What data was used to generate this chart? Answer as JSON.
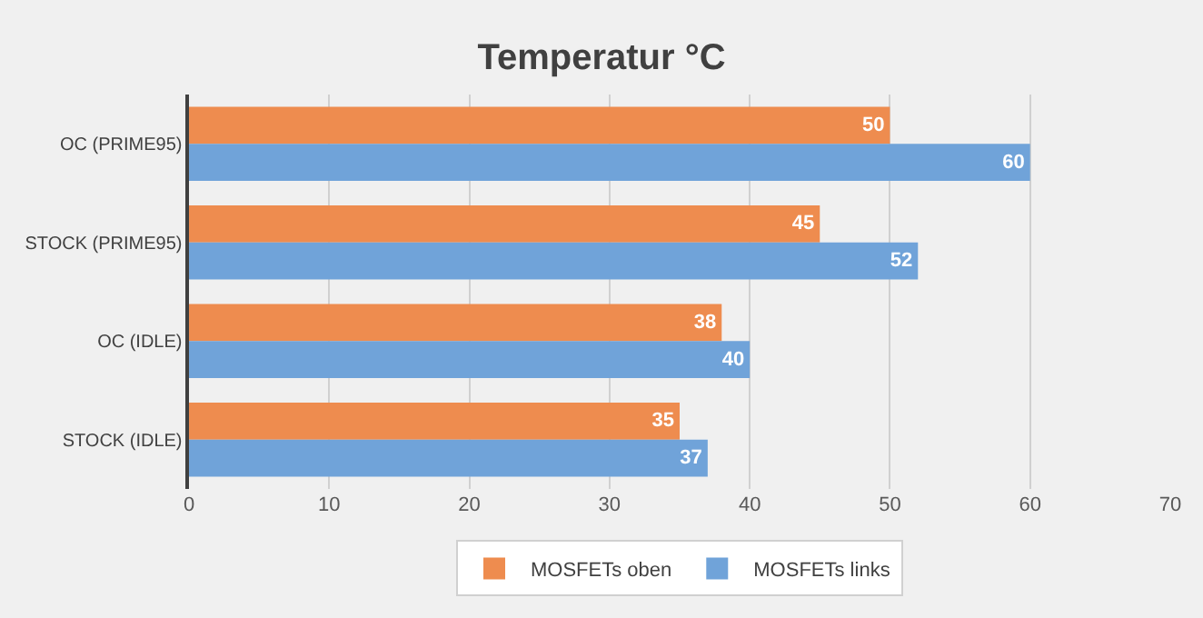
{
  "chart_data": {
    "type": "bar",
    "orientation": "horizontal",
    "title": "Temperatur °C",
    "categories": [
      "OC (PRIME95)",
      "STOCK (PRIME95)",
      "OC (IDLE)",
      "STOCK (IDLE)"
    ],
    "series": [
      {
        "name": "MOSFETs oben",
        "color": "#ee8c4f",
        "values": [
          50,
          45,
          38,
          35
        ]
      },
      {
        "name": "MOSFETs links",
        "color": "#70a3d9",
        "values": [
          60,
          52,
          40,
          37
        ]
      }
    ],
    "xlim": [
      0,
      70
    ],
    "xticks": [
      0,
      10,
      20,
      30,
      40,
      50,
      60,
      70
    ],
    "grid": "x",
    "legend": "bottom",
    "data_labels": true
  }
}
